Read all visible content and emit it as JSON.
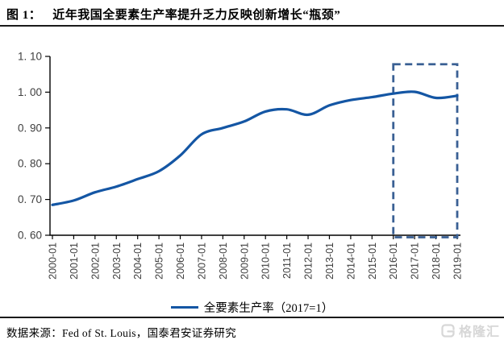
{
  "figure": {
    "label": "图 1：",
    "title": "近年我国全要素生产率提升乏力反映创新增长“瓶颈”"
  },
  "chart_data": {
    "type": "line",
    "title": "近年我国全要素生产率提升乏力反映创新增长“瓶颈”",
    "x": [
      "2000-01",
      "2001-01",
      "2002-01",
      "2003-01",
      "2004-01",
      "2005-01",
      "2006-01",
      "2007-01",
      "2008-01",
      "2009-01",
      "2010-01",
      "2011-01",
      "2012-01",
      "2013-01",
      "2014-01",
      "2015-01",
      "2016-01",
      "2017-01",
      "2018-01",
      "2019-01"
    ],
    "series": [
      {
        "name": "全要素生产率（2017=1）",
        "color": "#1456A4",
        "values": [
          0.685,
          0.697,
          0.72,
          0.736,
          0.757,
          0.779,
          0.823,
          0.882,
          0.9,
          0.918,
          0.946,
          0.952,
          0.937,
          0.963,
          0.978,
          0.986,
          0.996,
          1.001,
          0.984,
          0.99
        ]
      }
    ],
    "xlabel": "",
    "ylabel": "",
    "ylim": [
      0.6,
      1.1
    ],
    "y_ticks": {
      "values": [
        1.1,
        1.0,
        0.9,
        0.8,
        0.7,
        0.6
      ],
      "labels": [
        "1. 10",
        "1. 00",
        "0. 90",
        "0. 80",
        "0. 70",
        "0. 60"
      ]
    },
    "grid": false,
    "legend_position": "bottom-center",
    "highlight_box": {
      "from_x": "2016-01",
      "to_x": "2019-01",
      "from_y": 0.6,
      "to_y": 1.078,
      "style": "dashed",
      "color": "#3A6094"
    },
    "axis_color": "#000000",
    "tick_label_color": "#3e3e3e"
  },
  "legend": {
    "label": "全要素生产率（2017=1）"
  },
  "source": {
    "text": "数据来源：Fed of St. Louis，国泰君安证券研究"
  },
  "watermark": {
    "text": "格隆汇"
  }
}
